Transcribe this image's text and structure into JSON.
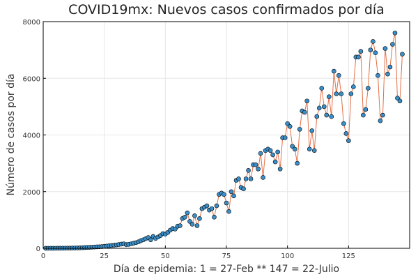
{
  "chart_data": {
    "type": "scatter",
    "title": "COVID19mx: Nuevos casos confirmados por día",
    "xlabel": "Día de epidemia: 1 = 27-Feb ** 147 = 22-Julio",
    "ylabel": "Número de casos por día",
    "xlim": [
      0,
      150
    ],
    "ylim": [
      0,
      8000
    ],
    "xticks": [
      0,
      25,
      50,
      75,
      100,
      125
    ],
    "yticks": [
      0,
      2000,
      4000,
      6000,
      8000
    ],
    "grid": true,
    "legend": "none",
    "colors": {
      "line": "#e26f46",
      "marker": "#3b8fc9"
    },
    "x": [
      1,
      2,
      3,
      4,
      5,
      6,
      7,
      8,
      9,
      10,
      11,
      12,
      13,
      14,
      15,
      16,
      17,
      18,
      19,
      20,
      21,
      22,
      23,
      24,
      25,
      26,
      27,
      28,
      29,
      30,
      31,
      32,
      33,
      34,
      35,
      36,
      37,
      38,
      39,
      40,
      41,
      42,
      43,
      44,
      45,
      46,
      47,
      48,
      49,
      50,
      51,
      52,
      53,
      54,
      55,
      56,
      57,
      58,
      59,
      60,
      61,
      62,
      63,
      64,
      65,
      66,
      67,
      68,
      69,
      70,
      71,
      72,
      73,
      74,
      75,
      76,
      77,
      78,
      79,
      80,
      81,
      82,
      83,
      84,
      85,
      86,
      87,
      88,
      89,
      90,
      91,
      92,
      93,
      94,
      95,
      96,
      97,
      98,
      99,
      100,
      101,
      102,
      103,
      104,
      105,
      106,
      107,
      108,
      109,
      110,
      111,
      112,
      113,
      114,
      115,
      116,
      117,
      118,
      119,
      120,
      121,
      122,
      123,
      124,
      125,
      126,
      127,
      128,
      129,
      130,
      131,
      132,
      133,
      134,
      135,
      136,
      137,
      138,
      139,
      140,
      141,
      142,
      143,
      144,
      145,
      146,
      147
    ],
    "y": [
      1,
      1,
      2,
      2,
      3,
      4,
      4,
      5,
      6,
      7,
      8,
      10,
      12,
      14,
      16,
      20,
      25,
      30,
      35,
      40,
      45,
      50,
      55,
      60,
      70,
      80,
      90,
      100,
      110,
      120,
      135,
      150,
      160,
      130,
      140,
      160,
      180,
      200,
      230,
      270,
      300,
      340,
      380,
      300,
      420,
      350,
      400,
      450,
      520,
      500,
      560,
      640,
      700,
      680,
      780,
      800,
      1050,
      1100,
      1250,
      950,
      850,
      1150,
      800,
      1050,
      1400,
      1450,
      1500,
      1350,
      1400,
      1100,
      1500,
      1900,
      1950,
      1900,
      1600,
      1300,
      2000,
      1850,
      2400,
      2450,
      2150,
      2100,
      2450,
      2750,
      2450,
      2950,
      2950,
      2800,
      3350,
      2500,
      3450,
      3500,
      3450,
      3300,
      3050,
      3400,
      2800,
      3900,
      3900,
      4400,
      4300,
      3600,
      3500,
      3000,
      4200,
      4850,
      4800,
      5200,
      3500,
      4150,
      3450,
      4650,
      4950,
      5650,
      5000,
      4700,
      5350,
      4650,
      6250,
      5450,
      6100,
      5450,
      4400,
      4050,
      3800,
      5450,
      5700,
      6750,
      6750,
      6950,
      4700,
      4900,
      5650,
      7000,
      7300,
      6900,
      6100,
      4500,
      4700,
      7050,
      6150,
      6400,
      7200,
      7600,
      5300,
      5200,
      6850
    ]
  }
}
